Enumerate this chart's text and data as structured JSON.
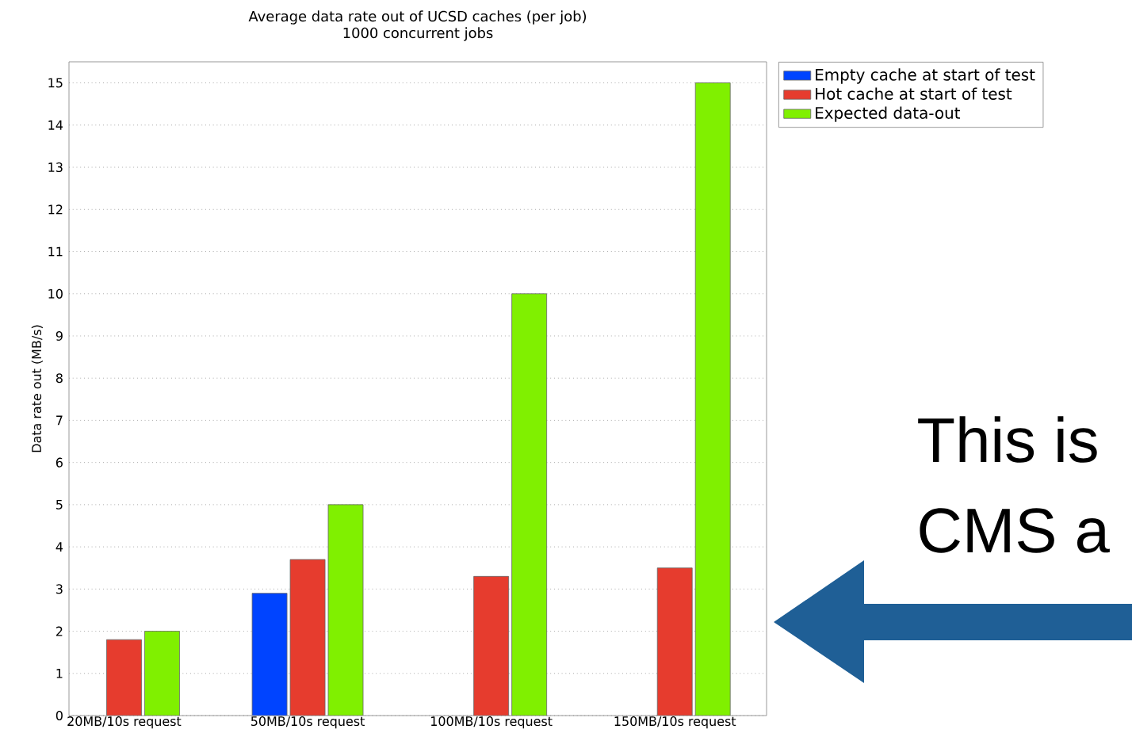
{
  "chart_data": {
    "type": "bar",
    "title": "Average data rate out of UCSD caches (per job)",
    "subtitle": "1000 concurrent jobs",
    "ylabel": "Data rate out (MB/s)",
    "categories": [
      "20MB/10s request",
      "50MB/10s request",
      "100MB/10s request",
      "150MB/10s request"
    ],
    "series": [
      {
        "name": "Empty cache at start of test",
        "color": "#0044ff",
        "values": [
          null,
          2.9,
          null,
          null
        ]
      },
      {
        "name": "Hot cache at start of test",
        "color": "#e63c2e",
        "values": [
          1.8,
          3.7,
          3.3,
          3.5
        ]
      },
      {
        "name": "Expected data-out",
        "color": "#80f000",
        "values": [
          2,
          5,
          10,
          15
        ]
      }
    ],
    "ylim": [
      0,
      15.5
    ],
    "yticks": [
      0,
      1,
      2,
      3,
      4,
      5,
      6,
      7,
      8,
      9,
      10,
      11,
      12,
      13,
      14,
      15
    ],
    "grid": "y",
    "legend": "top right",
    "annotations": [
      "This is",
      "CMS a"
    ]
  }
}
